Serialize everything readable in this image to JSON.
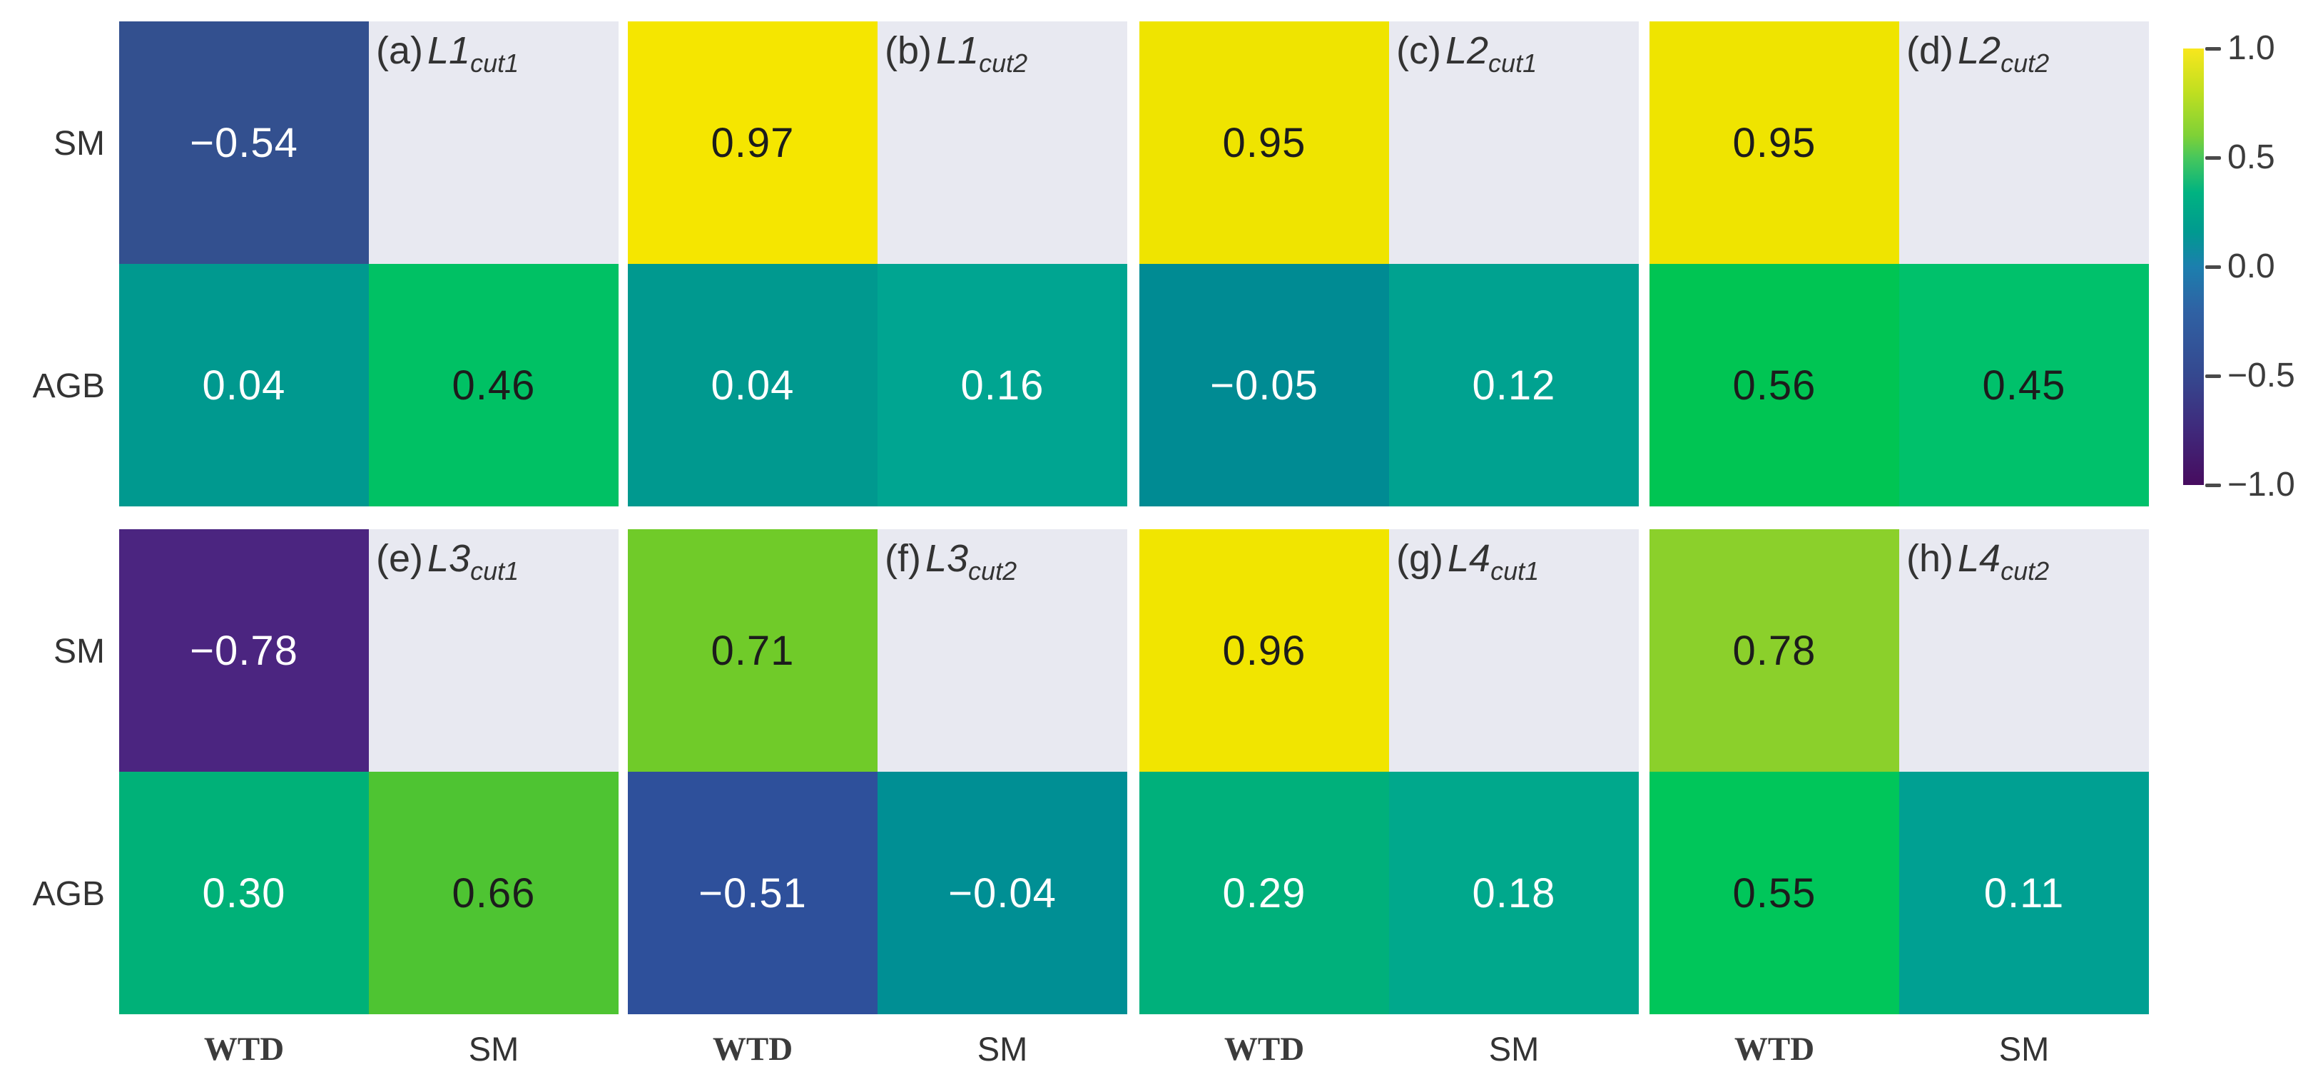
{
  "figure": {
    "background": "#ffffff",
    "masked_cell_color": "#e8e9f1",
    "description": "Correlation heatmaps of SM and AGB versus WTD and SM for sites L1-L4 at cut1 and cut2"
  },
  "chart_data": [
    {
      "type": "heatmap",
      "id": "a",
      "title": "(a) L1cut1",
      "title_parts": {
        "prefix": "(a)",
        "main": "L1",
        "sub": "cut1"
      },
      "rows": [
        "SM",
        "AGB"
      ],
      "cols": [
        "WTD",
        "SM"
      ],
      "value_range": [
        -1,
        1
      ],
      "masked": "upper-right",
      "values": [
        [
          -0.54,
          null
        ],
        [
          0.04,
          0.46
        ]
      ],
      "cell_labels": [
        [
          "−0.54",
          ""
        ],
        [
          "0.04",
          "0.46"
        ]
      ],
      "cell_colors": [
        [
          "#33508f",
          "#e8e9f1"
        ],
        [
          "#00998f",
          "#00c164"
        ]
      ]
    },
    {
      "type": "heatmap",
      "id": "b",
      "title": "(b) L1cut2",
      "title_parts": {
        "prefix": "(b)",
        "main": "L1",
        "sub": "cut2"
      },
      "rows": [
        "SM",
        "AGB"
      ],
      "cols": [
        "WTD",
        "SM"
      ],
      "value_range": [
        -1,
        1
      ],
      "masked": "upper-right",
      "values": [
        [
          0.97,
          null
        ],
        [
          0.04,
          0.16
        ]
      ],
      "cell_labels": [
        [
          "0.97",
          ""
        ],
        [
          "0.04",
          "0.16"
        ]
      ],
      "cell_colors": [
        [
          "#f5e600",
          "#e8e9f1"
        ],
        [
          "#00998f",
          "#00a591"
        ]
      ]
    },
    {
      "type": "heatmap",
      "id": "c",
      "title": "(c) L2cut1",
      "title_parts": {
        "prefix": "(c)",
        "main": "L2",
        "sub": "cut1"
      },
      "rows": [
        "SM",
        "AGB"
      ],
      "cols": [
        "WTD",
        "SM"
      ],
      "value_range": [
        -1,
        1
      ],
      "masked": "upper-right",
      "values": [
        [
          0.95,
          null
        ],
        [
          -0.05,
          0.12
        ]
      ],
      "cell_labels": [
        [
          "0.95",
          ""
        ],
        [
          "−0.05",
          "0.12"
        ]
      ],
      "cell_colors": [
        [
          "#efe400",
          "#e8e9f1"
        ],
        [
          "#008b93",
          "#00a290"
        ]
      ]
    },
    {
      "type": "heatmap",
      "id": "d",
      "title": "(d) L2cut2",
      "title_parts": {
        "prefix": "(d)",
        "main": "L2",
        "sub": "cut2"
      },
      "rows": [
        "SM",
        "AGB"
      ],
      "cols": [
        "WTD",
        "SM"
      ],
      "value_range": [
        -1,
        1
      ],
      "masked": "upper-right",
      "values": [
        [
          0.95,
          null
        ],
        [
          0.56,
          0.45
        ]
      ],
      "cell_labels": [
        [
          "0.95",
          ""
        ],
        [
          "0.56",
          "0.45"
        ]
      ],
      "cell_colors": [
        [
          "#efe400",
          "#e8e9f1"
        ],
        [
          "#00c553",
          "#00c16b"
        ]
      ]
    },
    {
      "type": "heatmap",
      "id": "e",
      "title": "(e) L3cut1",
      "title_parts": {
        "prefix": "(e)",
        "main": "L3",
        "sub": "cut1"
      },
      "rows": [
        "SM",
        "AGB"
      ],
      "cols": [
        "WTD",
        "SM"
      ],
      "value_range": [
        -1,
        1
      ],
      "masked": "upper-right",
      "values": [
        [
          -0.78,
          null
        ],
        [
          0.3,
          0.66
        ]
      ],
      "cell_labels": [
        [
          "−0.78",
          ""
        ],
        [
          "0.30",
          "0.66"
        ]
      ],
      "cell_colors": [
        [
          "#4b2580",
          "#e8e9f1"
        ],
        [
          "#00b178",
          "#4ec432"
        ]
      ]
    },
    {
      "type": "heatmap",
      "id": "f",
      "title": "(f) L3cut2",
      "title_parts": {
        "prefix": "(f)",
        "main": "L3",
        "sub": "cut2"
      },
      "rows": [
        "SM",
        "AGB"
      ],
      "cols": [
        "WTD",
        "SM"
      ],
      "value_range": [
        -1,
        1
      ],
      "masked": "upper-right",
      "values": [
        [
          0.71,
          null
        ],
        [
          -0.51,
          -0.04
        ]
      ],
      "cell_labels": [
        [
          "0.71",
          ""
        ],
        [
          "−0.51",
          "−0.04"
        ]
      ],
      "cell_colors": [
        [
          "#70cb29",
          "#e8e9f1"
        ],
        [
          "#2e509b",
          "#008f94"
        ]
      ]
    },
    {
      "type": "heatmap",
      "id": "g",
      "title": "(g) L4cut1",
      "title_parts": {
        "prefix": "(g)",
        "main": "L4",
        "sub": "cut1"
      },
      "rows": [
        "SM",
        "AGB"
      ],
      "cols": [
        "WTD",
        "SM"
      ],
      "value_range": [
        -1,
        1
      ],
      "masked": "upper-right",
      "values": [
        [
          0.96,
          null
        ],
        [
          0.29,
          0.18
        ]
      ],
      "cell_labels": [
        [
          "0.96",
          ""
        ],
        [
          "0.29",
          "0.18"
        ]
      ],
      "cell_colors": [
        [
          "#f1e500",
          "#e8e9f1"
        ],
        [
          "#00b07b",
          "#00a88c"
        ]
      ]
    },
    {
      "type": "heatmap",
      "id": "h",
      "title": "(h) L4cut2",
      "title_parts": {
        "prefix": "(h)",
        "main": "L4",
        "sub": "cut2"
      },
      "rows": [
        "SM",
        "AGB"
      ],
      "cols": [
        "WTD",
        "SM"
      ],
      "value_range": [
        -1,
        1
      ],
      "masked": "upper-right",
      "values": [
        [
          0.78,
          null
        ],
        [
          0.55,
          0.11
        ]
      ],
      "cell_labels": [
        [
          "0.78",
          ""
        ],
        [
          "0.55",
          "0.11"
        ]
      ],
      "cell_colors": [
        [
          "#8bd02b",
          "#e8e9f1"
        ],
        [
          "#00c65a",
          "#00a092"
        ]
      ]
    }
  ],
  "colorbar": {
    "min": -1.0,
    "max": 1.0,
    "ticks": [
      {
        "value": 1.0,
        "label": "1.0"
      },
      {
        "value": 0.5,
        "label": "0.5"
      },
      {
        "value": 0.0,
        "label": "0.0"
      },
      {
        "value": -0.5,
        "label": "−0.5"
      },
      {
        "value": -1.0,
        "label": "−1.0"
      }
    ],
    "gradient": [
      "#f8e71d",
      "#c0df20",
      "#7ed137",
      "#47c75c",
      "#00b381",
      "#009a90",
      "#1c7fae",
      "#2f62a4",
      "#35488f",
      "#3f2a7c",
      "#470c5f"
    ]
  }
}
